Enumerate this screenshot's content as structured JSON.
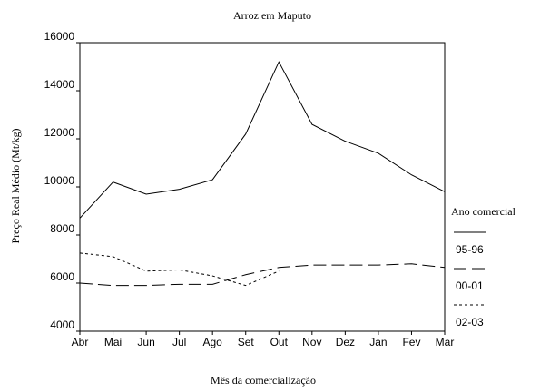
{
  "chart_data": {
    "type": "line",
    "title": "Arroz em Maputo",
    "x_label": "Mês da comercialização",
    "y_label": "Preço Real Médio (Mt/kg)",
    "categories": [
      "Abr",
      "Mai",
      "Jun",
      "Jul",
      "Ago",
      "Set",
      "Out",
      "Nov",
      "Dez",
      "Jan",
      "Fev",
      "Mar"
    ],
    "series": [
      {
        "name": "95-96",
        "color": "#000000",
        "line_style": "solid",
        "values": [
          8700,
          10200,
          9700,
          9900,
          10300,
          12200,
          15200,
          12600,
          11900,
          11400,
          10500,
          9800
        ]
      },
      {
        "name": "00-01",
        "color": "#000000",
        "line_style": "dashed",
        "values": [
          6000,
          5900,
          5900,
          5950,
          5950,
          6350,
          6650,
          6750,
          6750,
          6750,
          6800,
          6650
        ]
      },
      {
        "name": "02-03",
        "color": "#000000",
        "line_style": "dotted",
        "values": [
          7250,
          7100,
          6500,
          6550,
          6300,
          5900,
          6500,
          null,
          null,
          null,
          null,
          null
        ]
      }
    ],
    "legend_title": "Ano comercial",
    "legend": "right",
    "ylim": [
      4000,
      16000
    ],
    "yticks": [
      4000,
      6000,
      8000,
      10000,
      12000,
      14000,
      16000
    ]
  }
}
